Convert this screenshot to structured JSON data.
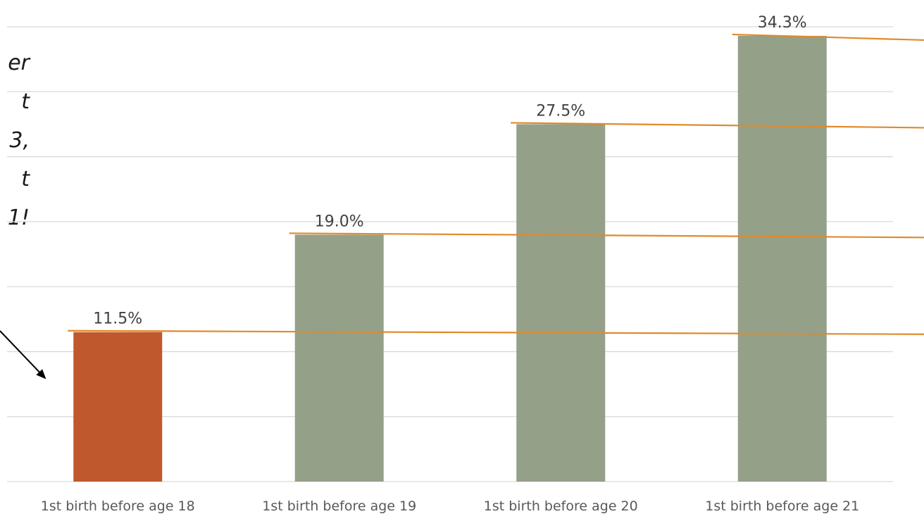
{
  "chart_data": {
    "type": "bar",
    "title": "",
    "xlabel": "",
    "ylabel": "",
    "categories": [
      "1st birth before age 18",
      "1st birth before age 19",
      "1st birth before age 20",
      "1st birth before age 21"
    ],
    "values": [
      11.5,
      19.0,
      27.5,
      34.3
    ],
    "data_labels": [
      "11.5%",
      "19.0%",
      "27.5%",
      "34.3%"
    ],
    "ylim": [
      0,
      35
    ],
    "grid": true,
    "legend": "none",
    "colors": {
      "highlight": "#C0582D",
      "default": "#94A088",
      "reference_line": "#E08A2B",
      "grid": "#D9D9D9"
    },
    "highlight_index": 0
  },
  "annotation": {
    "lines": [
      "er",
      "t",
      "3,",
      "t",
      "1!"
    ]
  }
}
